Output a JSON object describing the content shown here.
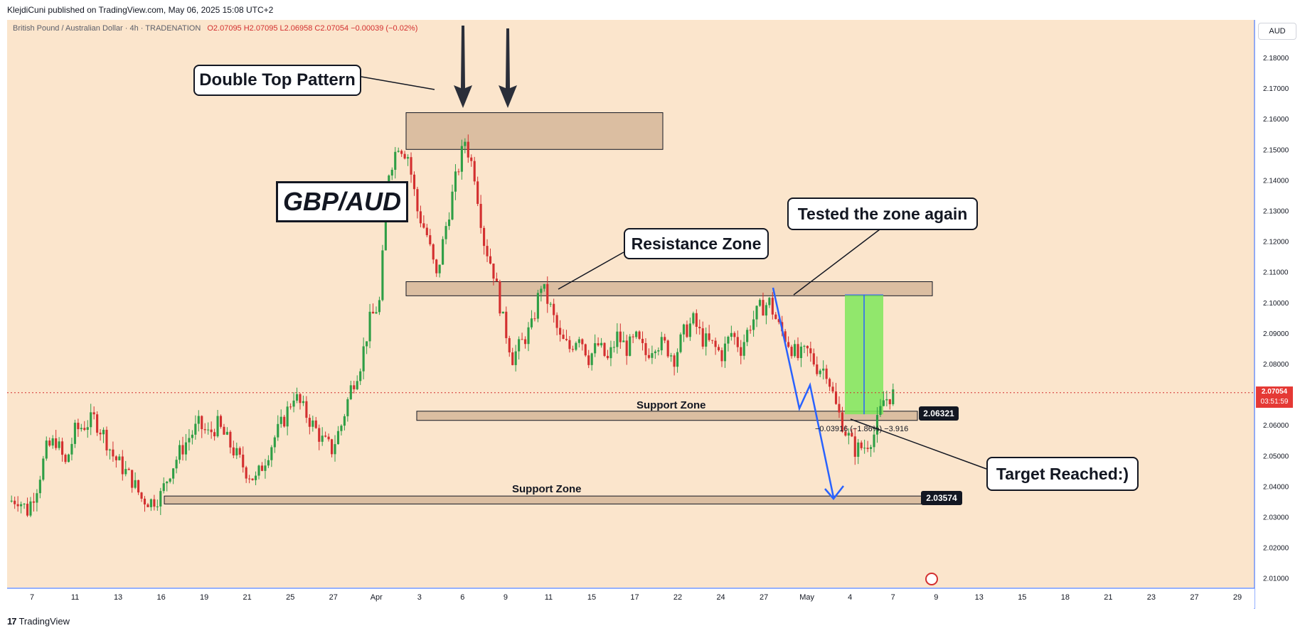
{
  "header": {
    "published": "KlejdiCuni published on TradingView.com, May 06, 2025 15:08 UTC+2"
  },
  "legend": {
    "symbol": "British Pound / Australian Dollar · 4h · TRADENATION",
    "ohlc": "O2.07095  H2.07095  L2.06958  C2.07054  −0.00039 (−0.02%)"
  },
  "currency_button": "AUD",
  "footer": {
    "brand": "TradingView"
  },
  "colors": {
    "background": "#fbe5cc",
    "up": "#2e9e45",
    "down": "#d32f2f",
    "zone_fill": "#d7b99c",
    "target_fill": "#7ee85a",
    "blue": "#2962ff",
    "price_badge": "#e53935"
  },
  "price_axis": {
    "ticks": [
      "2.18000",
      "2.17000",
      "2.16000",
      "2.15000",
      "2.14000",
      "2.13000",
      "2.12000",
      "2.11000",
      "2.10000",
      "2.09000",
      "2.08000",
      "2.07000",
      "2.06000",
      "2.05000",
      "2.04000",
      "2.03000",
      "2.02000",
      "2.01000"
    ],
    "last_price": "2.07054",
    "countdown": "03:51:59"
  },
  "time_axis": {
    "labels": [
      "7",
      "11",
      "13",
      "16",
      "19",
      "21",
      "25",
      "27",
      "Apr",
      "3",
      "6",
      "9",
      "11",
      "15",
      "17",
      "22",
      "24",
      "27",
      "May",
      "4",
      "7",
      "9",
      "13",
      "15",
      "18",
      "21",
      "23",
      "27",
      "29"
    ]
  },
  "annotations": {
    "title": "GBP/AUD",
    "double_top": "Double Top Pattern",
    "resistance": "Resistance Zone",
    "tested": "Tested the zone again",
    "target": "Target Reached:)",
    "support_upper": "Support Zone",
    "support_lower": "Support Zone",
    "support_upper_price": "2.06321",
    "support_lower_price": "2.03574",
    "measure": "−0.03916 (−1.86%) −3.916"
  },
  "chart_data": {
    "type": "candlestick",
    "symbol": "GBP/AUD",
    "timeframe": "4h",
    "ylim": [
      2.005,
      2.185
    ],
    "last_close": 2.07054,
    "zones": [
      {
        "name": "Double Top Zone",
        "low": 2.15,
        "high": 2.162
      },
      {
        "name": "Resistance Zone",
        "low": 2.1022,
        "high": 2.1068
      },
      {
        "name": "Support Zone",
        "low": 2.0615,
        "high": 2.0645,
        "label_price": 2.06321
      },
      {
        "name": "Support Zone",
        "low": 2.0342,
        "high": 2.0368,
        "label_price": 2.03574
      }
    ],
    "target_box": {
      "from": 2.1025,
      "to": 2.0635
    },
    "trend_closes": [
      2.035,
      2.036,
      2.032,
      2.04,
      2.052,
      2.055,
      2.047,
      2.058,
      2.06,
      2.062,
      2.057,
      2.05,
      2.046,
      2.042,
      2.036,
      2.035,
      2.037,
      2.045,
      2.051,
      2.056,
      2.06,
      2.057,
      2.06,
      2.055,
      2.05,
      2.045,
      2.042,
      2.049,
      2.056,
      2.062,
      2.07,
      2.065,
      2.06,
      2.055,
      2.052,
      2.06,
      2.072,
      2.08,
      2.094,
      2.1,
      2.143,
      2.152,
      2.148,
      2.13,
      2.122,
      2.108,
      2.125,
      2.14,
      2.153,
      2.142,
      2.12,
      2.11,
      2.094,
      2.082,
      2.087,
      2.092,
      2.106,
      2.098,
      2.088,
      2.085,
      2.09,
      2.082,
      2.086,
      2.081,
      2.089,
      2.085,
      2.088,
      2.083,
      2.087,
      2.086,
      2.082,
      2.09,
      2.094,
      2.088,
      2.086,
      2.083,
      2.09,
      2.085,
      2.093,
      2.098,
      2.1,
      2.092,
      2.087,
      2.082,
      2.084,
      2.079,
      2.078,
      2.066,
      2.058,
      2.052,
      2.053,
      2.057,
      2.068,
      2.07
    ]
  }
}
